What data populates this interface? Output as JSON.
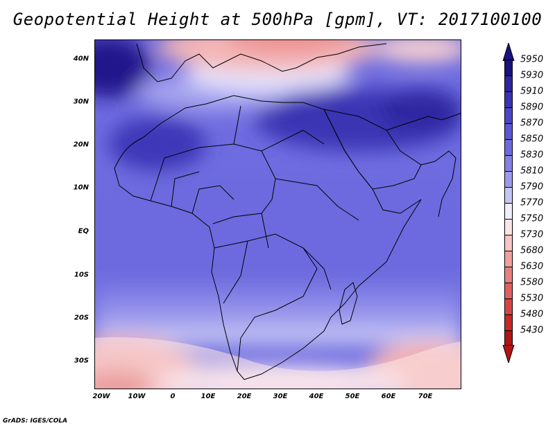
{
  "title": "Geopotential Height at 500hPa [gpm], VT: 2017100100",
  "credit": "GrADS: IGES/COLA",
  "map": {
    "lat_labels": [
      "40N",
      "30N",
      "20N",
      "10N",
      "EQ",
      "10S",
      "20S",
      "30S"
    ],
    "lon_labels": [
      "20W",
      "10W",
      "0",
      "10E",
      "20E",
      "30E",
      "40E",
      "50E",
      "60E",
      "70E"
    ]
  },
  "colorbar": {
    "levels": [
      "5950",
      "5930",
      "5910",
      "5890",
      "5870",
      "5850",
      "5830",
      "5810",
      "5790",
      "5770",
      "5750",
      "5730",
      "5680",
      "5630",
      "5580",
      "5530",
      "5480",
      "5430"
    ],
    "colors": [
      "#1a1280",
      "#2d26a0",
      "#3a35b4",
      "#4a46c8",
      "#5a57d4",
      "#6c6ade",
      "#8381e6",
      "#9c9aec",
      "#c6c6f4",
      "#f0eeff",
      "#ffe4e4",
      "#f8c4c4",
      "#f0a0a0",
      "#e88080",
      "#e06060",
      "#d84444",
      "#c82828",
      "#b01414"
    ]
  }
}
